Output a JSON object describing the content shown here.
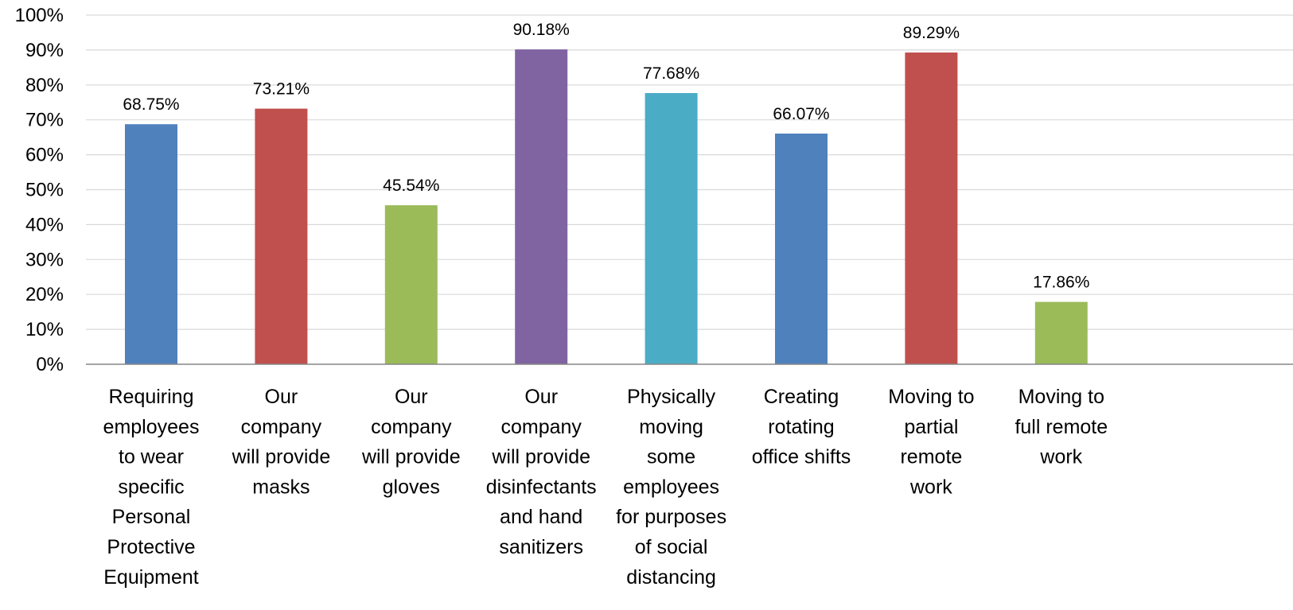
{
  "chart_data": {
    "type": "bar",
    "title": "",
    "xlabel": "",
    "ylabel": "",
    "ylim": [
      0,
      100
    ],
    "yticks": [
      0,
      10,
      20,
      30,
      40,
      50,
      60,
      70,
      80,
      90,
      100
    ],
    "ytick_format": "percent",
    "grid": true,
    "legend": "none",
    "categories": [
      [
        "Requiring",
        "employees",
        "to wear",
        "specific",
        "Personal",
        "Protective",
        "Equipment"
      ],
      [
        "Our",
        "company",
        "will provide",
        "masks"
      ],
      [
        "Our",
        "company",
        "will provide",
        "gloves"
      ],
      [
        "Our",
        "company",
        "will provide",
        "disinfectants",
        "and hand",
        "sanitizers"
      ],
      [
        "Physically",
        "moving",
        "some",
        "employees",
        "for purposes",
        "of social",
        "distancing"
      ],
      [
        "Creating",
        "rotating",
        "office shifts"
      ],
      [
        "Moving to",
        "partial",
        "remote",
        "work"
      ],
      [
        "Moving to",
        "full remote",
        "work"
      ]
    ],
    "values": [
      68.75,
      73.21,
      45.54,
      90.18,
      77.68,
      66.07,
      89.29,
      17.86
    ],
    "data_labels": [
      "68.75%",
      "73.21%",
      "45.54%",
      "90.18%",
      "77.68%",
      "66.07%",
      "89.29%",
      "17.86%"
    ],
    "colors": [
      "#4F81BD",
      "#C0504D",
      "#9BBB59",
      "#8064A2",
      "#4BACC6",
      "#4F81BD",
      "#C0504D",
      "#9BBB59"
    ]
  }
}
